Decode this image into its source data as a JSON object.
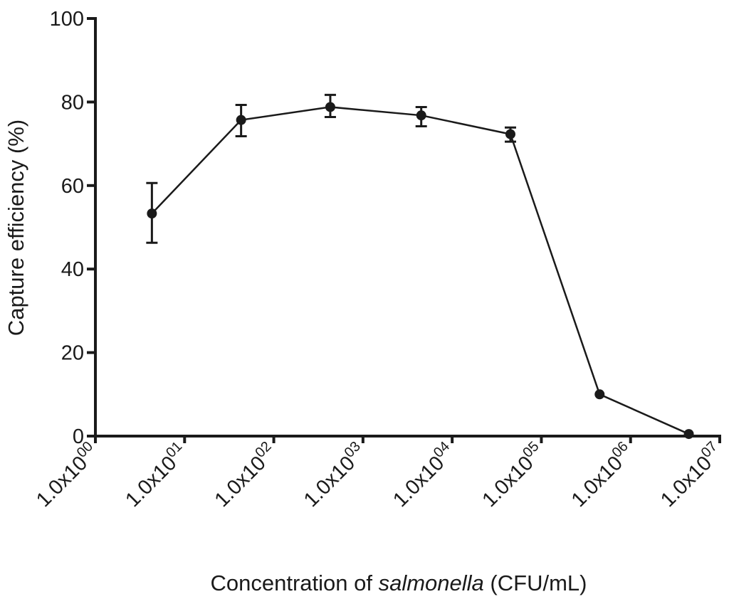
{
  "chart_data": {
    "type": "line",
    "title": "",
    "xlabel_parts": [
      "Concentration of ",
      "salmonella",
      " (CFU/mL)"
    ],
    "ylabel": "Capture efficiency (%)",
    "xscale": "log",
    "xlim": [
      1,
      10000000
    ],
    "ylim": [
      0,
      100
    ],
    "yticks": [
      0,
      20,
      40,
      60,
      80,
      100
    ],
    "xticks": [
      {
        "base": "1.0x10",
        "exp": "00",
        "value": 1
      },
      {
        "base": "1.0x10",
        "exp": "01",
        "value": 10
      },
      {
        "base": "1.0x10",
        "exp": "02",
        "value": 100
      },
      {
        "base": "1.0x10",
        "exp": "03",
        "value": 1000
      },
      {
        "base": "1.0x10",
        "exp": "04",
        "value": 10000
      },
      {
        "base": "1.0x10",
        "exp": "05",
        "value": 100000
      },
      {
        "base": "1.0x10",
        "exp": "06",
        "value": 1000000
      },
      {
        "base": "1.0x10",
        "exp": "07",
        "value": 10000000
      }
    ],
    "grid": false,
    "series": [
      {
        "name": "Capture efficiency",
        "x": [
          4.3,
          43,
          430,
          4500,
          45000,
          450000,
          4500000
        ],
        "y": [
          53.3,
          75.7,
          78.8,
          76.8,
          72.3,
          10.0,
          0.5
        ],
        "err_low": [
          46.3,
          71.8,
          76.4,
          74.2,
          70.5,
          9.5,
          0.2
        ],
        "err_high": [
          60.6,
          79.3,
          81.7,
          78.8,
          73.9,
          10.5,
          0.8
        ],
        "color": "#1a1a1a"
      }
    ]
  }
}
